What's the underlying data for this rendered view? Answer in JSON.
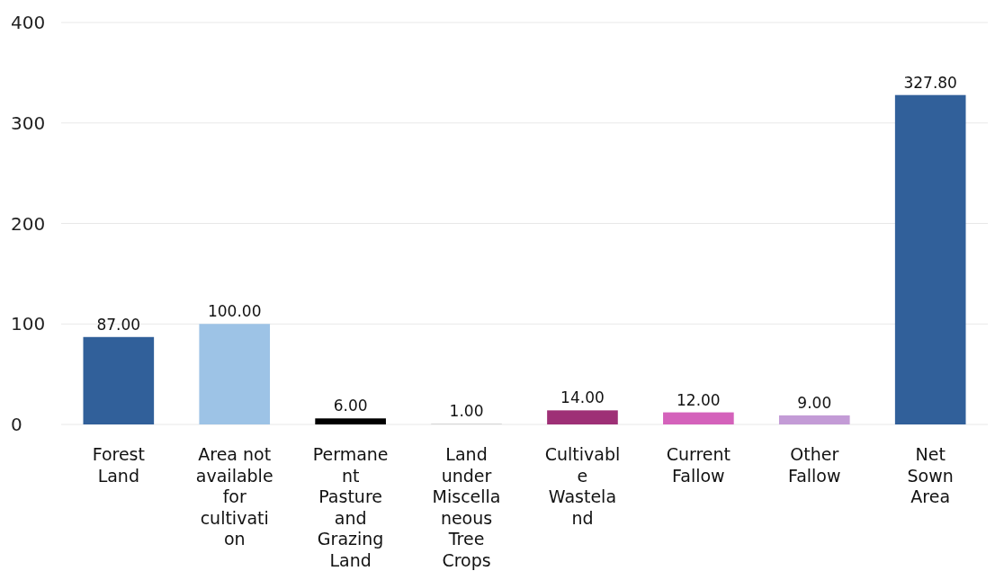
{
  "chart_data": {
    "type": "bar",
    "categories": [
      "Forest Land",
      "Area not available for cultivation",
      "Permanent Pasture and Grazing Land",
      "Land under Miscellaneous Tree Crops",
      "Cultivable Wasteland",
      "Current Fallow",
      "Other Fallow",
      "Net Sown Area"
    ],
    "values": [
      87,
      100,
      6,
      1,
      14,
      12,
      9,
      327.8
    ],
    "colors": [
      "#31609a",
      "#9dc3e6",
      "#000000",
      "#d9d9d9",
      "#9e3076",
      "#d462bb",
      "#c39bd6",
      "#31609a"
    ],
    "value_labels": [
      "87.00",
      "100.00",
      "6.00",
      "1.00",
      "14.00",
      "12.00",
      "9.00",
      "327.80"
    ],
    "ylim": [
      0,
      400
    ],
    "yticks": [
      0,
      100,
      200,
      300,
      400
    ],
    "grid": "y"
  }
}
